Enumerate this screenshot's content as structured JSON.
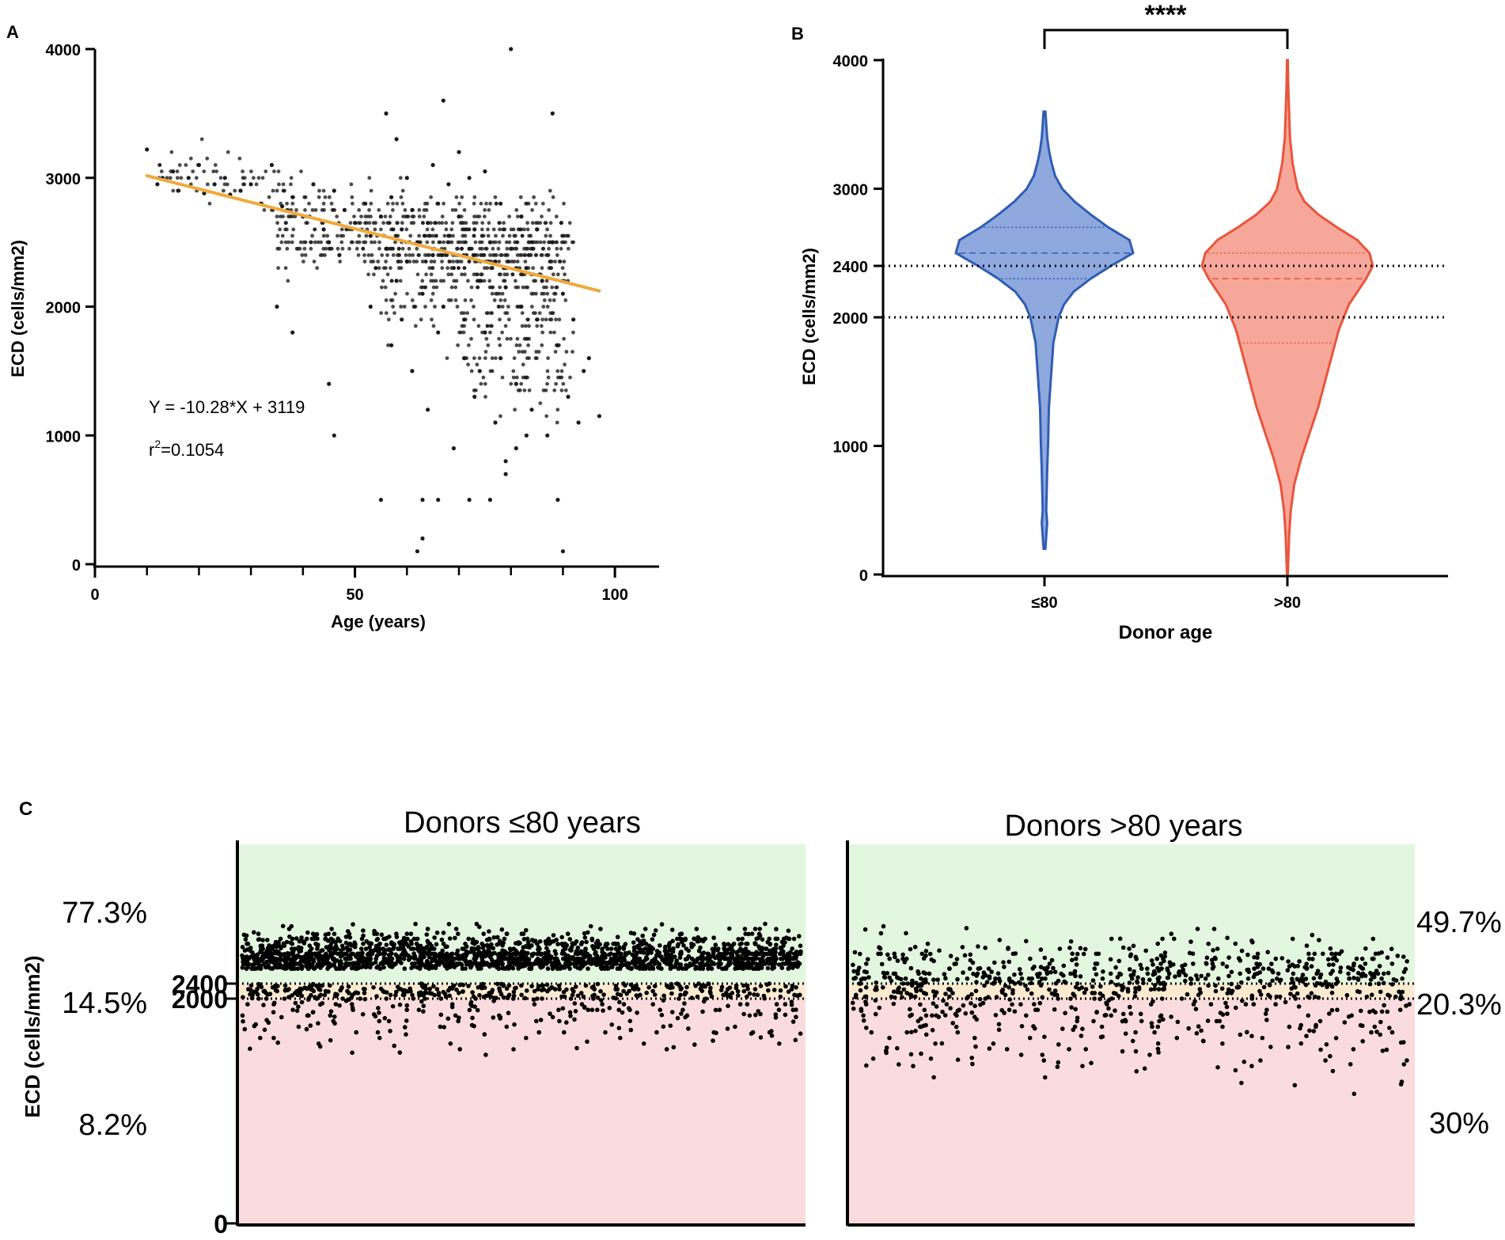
{
  "chart_data": [
    {
      "panel": "A",
      "type": "scatter",
      "xlabel": "Age (years)",
      "ylabel": "ECD (cells/mm2)",
      "xlim": [
        0,
        105
      ],
      "ylim": [
        0,
        4000
      ],
      "xticks": [
        0,
        50,
        100
      ],
      "yticks": [
        0,
        1000,
        2000,
        3000,
        4000
      ],
      "regression": {
        "slope": -10.28,
        "intercept": 3119,
        "x_range": [
          10,
          97
        ],
        "color": "#F2A93B"
      },
      "equation": "Y = -10.28*X + 3119",
      "r2_prefix": "r",
      "r2_sup": "2",
      "r2_value": "=0.1054",
      "point_color": "#1a1a1a",
      "points": [
        [
          10,
          3220
        ],
        [
          12,
          2950
        ],
        [
          13,
          3000
        ],
        [
          15,
          3050
        ],
        [
          16,
          2900
        ],
        [
          18,
          3000
        ],
        [
          20,
          3100
        ],
        [
          21,
          2880
        ],
        [
          23,
          2950
        ],
        [
          25,
          3000
        ],
        [
          26,
          2870
        ],
        [
          28,
          2900
        ],
        [
          30,
          2950
        ],
        [
          32,
          2800
        ],
        [
          34,
          3100
        ],
        [
          36,
          2780
        ],
        [
          38,
          2850
        ],
        [
          40,
          2700
        ],
        [
          42,
          2950
        ],
        [
          44,
          2600
        ],
        [
          45,
          2500
        ],
        [
          46,
          2900
        ],
        [
          47,
          2400
        ],
        [
          48,
          2750
        ],
        [
          50,
          2650
        ],
        [
          52,
          2800
        ],
        [
          53,
          2550
        ],
        [
          54,
          2300
        ],
        [
          55,
          2700
        ],
        [
          56,
          2450
        ],
        [
          57,
          2850
        ],
        [
          58,
          2200
        ],
        [
          59,
          2600
        ],
        [
          60,
          2350
        ],
        [
          61,
          2750
        ],
        [
          62,
          2500
        ],
        [
          63,
          2100
        ],
        [
          64,
          2650
        ],
        [
          65,
          2400
        ],
        [
          66,
          2800
        ],
        [
          67,
          2000
        ],
        [
          68,
          2550
        ],
        [
          69,
          2300
        ],
        [
          70,
          2700
        ],
        [
          71,
          1900
        ],
        [
          72,
          2450
        ],
        [
          73,
          2600
        ],
        [
          74,
          2200
        ],
        [
          75,
          1800
        ],
        [
          76,
          2500
        ],
        [
          77,
          2350
        ],
        [
          78,
          1600
        ],
        [
          79,
          2150
        ],
        [
          80,
          2450
        ],
        [
          81,
          1400
        ],
        [
          82,
          2000
        ],
        [
          83,
          2300
        ],
        [
          84,
          1200
        ],
        [
          85,
          1900
        ],
        [
          86,
          2200
        ],
        [
          87,
          1000
        ],
        [
          88,
          2500
        ],
        [
          89,
          1700
        ],
        [
          90,
          2100
        ],
        [
          91,
          1300
        ],
        [
          92,
          1900
        ],
        [
          93,
          1100
        ],
        [
          94,
          1500
        ],
        [
          95,
          1600
        ],
        [
          97,
          1150
        ],
        [
          65,
          3100
        ],
        [
          70,
          3200
        ],
        [
          75,
          3050
        ],
        [
          68,
          2950
        ],
        [
          72,
          3000
        ],
        [
          78,
          2800
        ],
        [
          82,
          2700
        ],
        [
          85,
          2600
        ],
        [
          60,
          3000
        ],
        [
          58,
          3300
        ],
        [
          56,
          3500
        ],
        [
          67,
          3600
        ],
        [
          80,
          4000
        ],
        [
          88,
          3500
        ],
        [
          55,
          500
        ],
        [
          63,
          500
        ],
        [
          66,
          500
        ],
        [
          72,
          500
        ],
        [
          76,
          500
        ],
        [
          89,
          500
        ],
        [
          63,
          200
        ],
        [
          62,
          100
        ],
        [
          90,
          100
        ],
        [
          45,
          1400
        ],
        [
          46,
          1000
        ],
        [
          53,
          2000
        ],
        [
          57,
          1700
        ],
        [
          61,
          1500
        ],
        [
          64,
          1200
        ],
        [
          69,
          900
        ],
        [
          73,
          1300
        ],
        [
          77,
          1100
        ],
        [
          79,
          800
        ],
        [
          81,
          900
        ],
        [
          83,
          1000
        ],
        [
          79,
          700
        ],
        [
          74,
          1500
        ],
        [
          71,
          1600
        ],
        [
          66,
          1800
        ],
        [
          59,
          1900
        ],
        [
          38,
          1800
        ],
        [
          35,
          2000
        ]
      ],
      "density_bands": [
        {
          "x_range": [
            35,
            92
          ],
          "y_center": 2550,
          "y_spread": 320,
          "count": 520
        },
        {
          "x_range": [
            55,
            90
          ],
          "y_center": 2300,
          "y_spread": 500,
          "count": 260
        },
        {
          "x_range": [
            70,
            92
          ],
          "y_center": 1700,
          "y_spread": 450,
          "count": 120
        },
        {
          "x_range": [
            12,
            40
          ],
          "y_center": 2850,
          "y_spread": 200,
          "count": 60
        }
      ]
    },
    {
      "panel": "B",
      "type": "violin",
      "xlabel": "Donor age",
      "ylabel": "ECD (cells/mm2)",
      "ylim": [
        0,
        4000
      ],
      "yticks": [
        0,
        1000,
        2000,
        2400,
        3000,
        4000
      ],
      "reference_lines": [
        2400,
        2000
      ],
      "significance": "****",
      "categories": [
        {
          "label": "≤80",
          "color_fill": "#8FA9DF",
          "color_edge": "#2F5DB3",
          "min": 200,
          "max": 3600,
          "q1": 2300,
          "median": 2500,
          "q3": 2700,
          "profile": [
            [
              200,
              0.01
            ],
            [
              400,
              0.03
            ],
            [
              500,
              0.02
            ],
            [
              800,
              0.03
            ],
            [
              1000,
              0.04
            ],
            [
              1300,
              0.05
            ],
            [
              1500,
              0.07
            ],
            [
              1800,
              0.1
            ],
            [
              2000,
              0.16
            ],
            [
              2100,
              0.22
            ],
            [
              2200,
              0.33
            ],
            [
              2300,
              0.52
            ],
            [
              2400,
              0.75
            ],
            [
              2500,
              1.0
            ],
            [
              2600,
              0.96
            ],
            [
              2700,
              0.72
            ],
            [
              2800,
              0.52
            ],
            [
              2900,
              0.34
            ],
            [
              3000,
              0.2
            ],
            [
              3100,
              0.12
            ],
            [
              3200,
              0.08
            ],
            [
              3300,
              0.05
            ],
            [
              3400,
              0.03
            ],
            [
              3500,
              0.02
            ],
            [
              3600,
              0.01
            ]
          ]
        },
        {
          "label": ">80",
          "color_fill": "#F7A79A",
          "color_edge": "#E8553B",
          "min": 0,
          "max": 4000,
          "q1": 1800,
          "median": 2300,
          "q3": 2500,
          "profile": [
            [
              0,
              0.005
            ],
            [
              300,
              0.02
            ],
            [
              500,
              0.04
            ],
            [
              700,
              0.08
            ],
            [
              900,
              0.16
            ],
            [
              1100,
              0.26
            ],
            [
              1300,
              0.36
            ],
            [
              1500,
              0.44
            ],
            [
              1700,
              0.52
            ],
            [
              1900,
              0.6
            ],
            [
              2100,
              0.72
            ],
            [
              2200,
              0.82
            ],
            [
              2300,
              0.92
            ],
            [
              2400,
              1.0
            ],
            [
              2500,
              0.96
            ],
            [
              2600,
              0.82
            ],
            [
              2700,
              0.58
            ],
            [
              2800,
              0.36
            ],
            [
              2900,
              0.2
            ],
            [
              3000,
              0.12
            ],
            [
              3200,
              0.06
            ],
            [
              3400,
              0.03
            ],
            [
              3600,
              0.02
            ],
            [
              3800,
              0.01
            ],
            [
              4000,
              0.005
            ]
          ]
        }
      ]
    },
    {
      "panel": "C",
      "type": "scatter",
      "ylabel": "ECD (cells/mm2)",
      "yticks": [
        0,
        2000,
        2400
      ],
      "zones": [
        {
          "name": "above-2400",
          "from": 2400,
          "to": 3800,
          "color": "#E3F6DF"
        },
        {
          "name": "2000-2400",
          "from": 2000,
          "to": 2400,
          "color": "#FBEAD0"
        },
        {
          "name": "below-2000",
          "from": 0,
          "to": 2000,
          "color": "#FBDCDE"
        }
      ],
      "subplots": [
        {
          "title": "Donors  ≤80 years",
          "percent_high": "77.3%",
          "percent_mid": "14.5%",
          "percent_low": "8.2%",
          "share_high": 0.773,
          "share_mid": 0.145,
          "share_low": 0.082,
          "count": 2400
        },
        {
          "title": "Donors  >80 years",
          "percent_high": "49.7%",
          "percent_mid": "20.3%",
          "percent_low": "30%",
          "share_high": 0.497,
          "share_mid": 0.203,
          "share_low": 0.3,
          "count": 900
        }
      ]
    }
  ],
  "panels": {
    "a": "A",
    "b": "B",
    "c": "C"
  }
}
